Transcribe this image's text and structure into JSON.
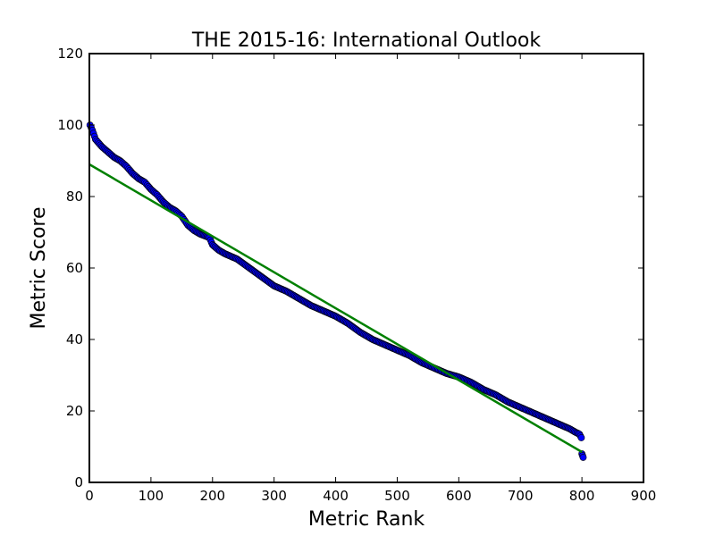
{
  "chart_data": {
    "type": "scatter",
    "title": "THE 2015-16: International Outlook",
    "xlabel": "Metric Rank",
    "ylabel": "Metric Score",
    "xlim": [
      0,
      900
    ],
    "ylim": [
      0,
      120
    ],
    "xticks": [
      0,
      100,
      200,
      300,
      400,
      500,
      600,
      700,
      800,
      900
    ],
    "yticks": [
      0,
      20,
      40,
      60,
      80,
      100,
      120
    ],
    "grid": false,
    "legend": "none",
    "series": [
      {
        "kind": "scatter",
        "color": "#0000ff",
        "edge_color": "#000000",
        "anchor_points": [
          [
            1,
            100.0
          ],
          [
            5,
            98.5
          ],
          [
            10,
            96.0
          ],
          [
            20,
            94.0
          ],
          [
            30,
            92.5
          ],
          [
            40,
            91.0
          ],
          [
            50,
            90.0
          ],
          [
            60,
            88.5
          ],
          [
            70,
            86.5
          ],
          [
            80,
            85.0
          ],
          [
            90,
            84.0
          ],
          [
            100,
            82.0
          ],
          [
            110,
            80.5
          ],
          [
            120,
            78.5
          ],
          [
            130,
            77.0
          ],
          [
            140,
            76.0
          ],
          [
            150,
            74.5
          ],
          [
            160,
            72.0
          ],
          [
            170,
            70.5
          ],
          [
            180,
            69.5
          ],
          [
            195,
            68.5
          ],
          [
            200,
            66.5
          ],
          [
            210,
            65.0
          ],
          [
            220,
            64.0
          ],
          [
            240,
            62.5
          ],
          [
            260,
            60.0
          ],
          [
            280,
            57.5
          ],
          [
            300,
            55.0
          ],
          [
            320,
            53.5
          ],
          [
            340,
            51.5
          ],
          [
            360,
            49.5
          ],
          [
            380,
            48.0
          ],
          [
            400,
            46.5
          ],
          [
            420,
            44.5
          ],
          [
            440,
            42.0
          ],
          [
            460,
            40.0
          ],
          [
            480,
            38.5
          ],
          [
            500,
            37.0
          ],
          [
            520,
            35.5
          ],
          [
            540,
            33.5
          ],
          [
            560,
            32.0
          ],
          [
            580,
            30.5
          ],
          [
            600,
            29.5
          ],
          [
            620,
            28.0
          ],
          [
            640,
            26.0
          ],
          [
            660,
            24.5
          ],
          [
            680,
            22.5
          ],
          [
            700,
            21.0
          ],
          [
            720,
            19.5
          ],
          [
            740,
            18.0
          ],
          [
            760,
            16.5
          ],
          [
            780,
            15.0
          ],
          [
            790,
            14.0
          ],
          [
            796,
            13.5
          ],
          [
            799,
            12.5
          ],
          [
            800,
            8.0
          ],
          [
            801,
            7.5
          ],
          [
            802,
            7.0
          ]
        ]
      },
      {
        "kind": "line",
        "color": "#008000",
        "x": [
          0,
          800
        ],
        "y": [
          89,
          8.5
        ]
      }
    ]
  }
}
